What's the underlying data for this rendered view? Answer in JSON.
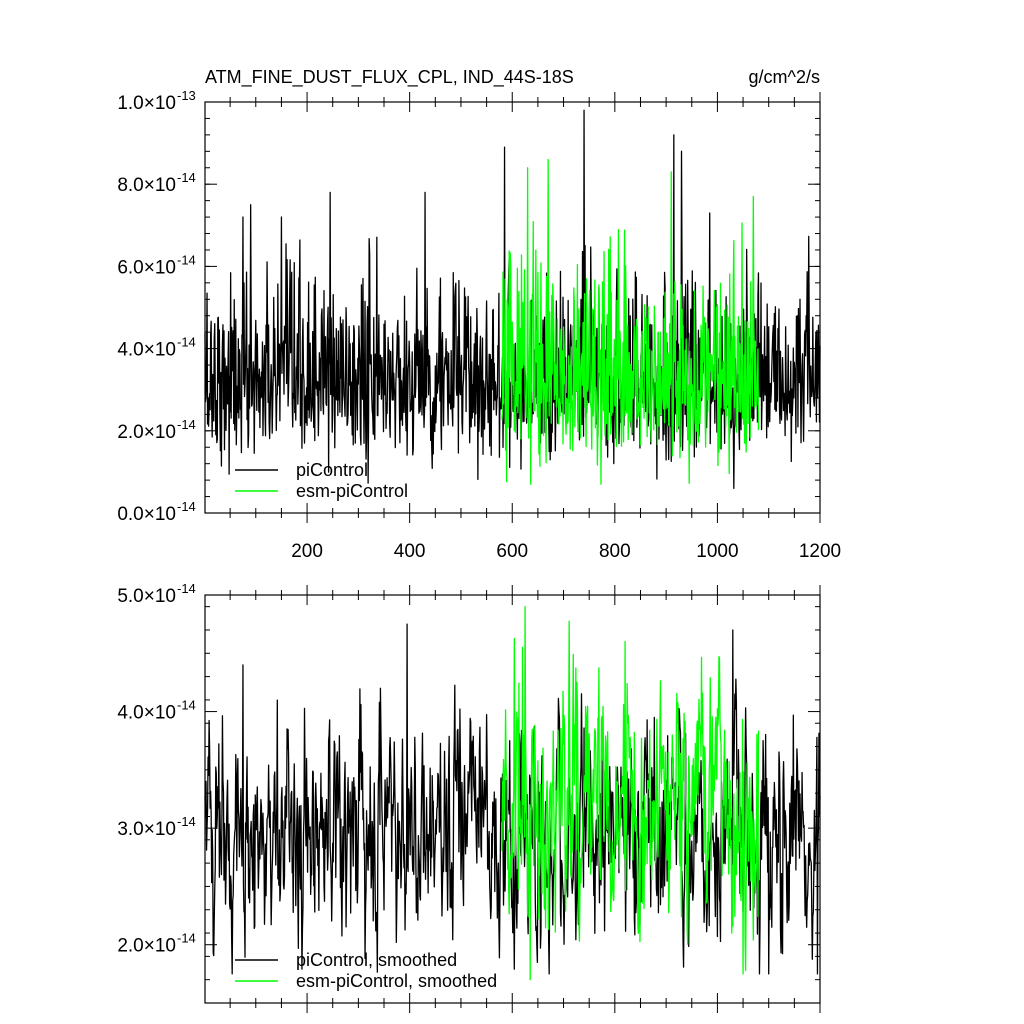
{
  "chart_data": [
    {
      "type": "line",
      "title": "ATM_FINE_DUST_FLUX_CPL, IND_44S-18S",
      "units": "g/cm^2/s",
      "xlim": [
        1,
        1200
      ],
      "ylim": [
        0,
        1e-13
      ],
      "x_ticks": [
        200,
        400,
        600,
        800,
        1000,
        1200
      ],
      "y_ticks": [
        {
          "mantissa": "0.0",
          "exponent": "-14"
        },
        {
          "mantissa": "2.0",
          "exponent": "-14"
        },
        {
          "mantissa": "4.0",
          "exponent": "-14"
        },
        {
          "mantissa": "6.0",
          "exponent": "-14"
        },
        {
          "mantissa": "8.0",
          "exponent": "-14"
        },
        {
          "mantissa": "1.0",
          "exponent": "-13"
        }
      ],
      "y_tick_values": [
        0,
        2e-14,
        4e-14,
        6e-14,
        8e-14,
        1e-13
      ],
      "legend_position": "bottom-left",
      "series": [
        {
          "name": "piControl",
          "color": "#000000",
          "x_range": [
            1,
            1200
          ],
          "mean": 3.1e-14,
          "std": 1.15e-14,
          "min": 6e-15,
          "max": 9.8e-14,
          "peaks": [
            [
              75,
              7.2e-14
            ],
            [
              90,
              7.5e-14
            ],
            [
              150,
              7.2e-14
            ],
            [
              245,
              7.8e-14
            ],
            [
              430,
              7.8e-14
            ],
            [
              585,
              8.9e-14
            ],
            [
              740,
              9.8e-14
            ],
            [
              915,
              9.2e-14
            ],
            [
              930,
              8.8e-14
            ],
            [
              985,
              7.3e-14
            ]
          ]
        },
        {
          "name": "esm-piControl",
          "color": "#00ff00",
          "x_range": [
            580,
            1080
          ],
          "mean": 3.2e-14,
          "std": 1.3e-14,
          "min": 7e-15,
          "max": 8.6e-14,
          "peaks": [
            [
              630,
              8.4e-14
            ],
            [
              670,
              8.6e-14
            ],
            [
              910,
              8.3e-14
            ],
            [
              1070,
              7.7e-14
            ]
          ]
        }
      ]
    },
    {
      "type": "line",
      "xlim": [
        1,
        1200
      ],
      "ylim": [
        1.5e-14,
        5e-14
      ],
      "y_ticks": [
        {
          "mantissa": "2.0",
          "exponent": "-14"
        },
        {
          "mantissa": "3.0",
          "exponent": "-14"
        },
        {
          "mantissa": "4.0",
          "exponent": "-14"
        },
        {
          "mantissa": "5.0",
          "exponent": "-14"
        }
      ],
      "y_tick_values": [
        2e-14,
        3e-14,
        4e-14,
        5e-14
      ],
      "legend_position": "bottom-left",
      "series": [
        {
          "name": "piControl, smoothed",
          "color": "#000000",
          "x_range": [
            1,
            1200
          ],
          "mean": 2.95e-14,
          "std": 4.5e-15,
          "min": 1.75e-14,
          "max": 4.75e-14,
          "peaks": [
            [
              75,
              4.4e-14
            ],
            [
              395,
              4.75e-14
            ],
            [
              1030,
              4.7e-14
            ],
            [
              1195,
              1.75e-14
            ]
          ]
        },
        {
          "name": "esm-piControl, smoothed",
          "color": "#00ff00",
          "x_range": [
            580,
            1080
          ],
          "mean": 3.15e-14,
          "std": 5.5e-15,
          "min": 1.7e-14,
          "max": 4.9e-14,
          "peaks": [
            [
              625,
              4.9e-14
            ],
            [
              620,
              4.55e-14
            ],
            [
              635,
              1.7e-14
            ],
            [
              820,
              4.6e-14
            ],
            [
              1050,
              1.75e-14
            ]
          ]
        }
      ]
    }
  ]
}
